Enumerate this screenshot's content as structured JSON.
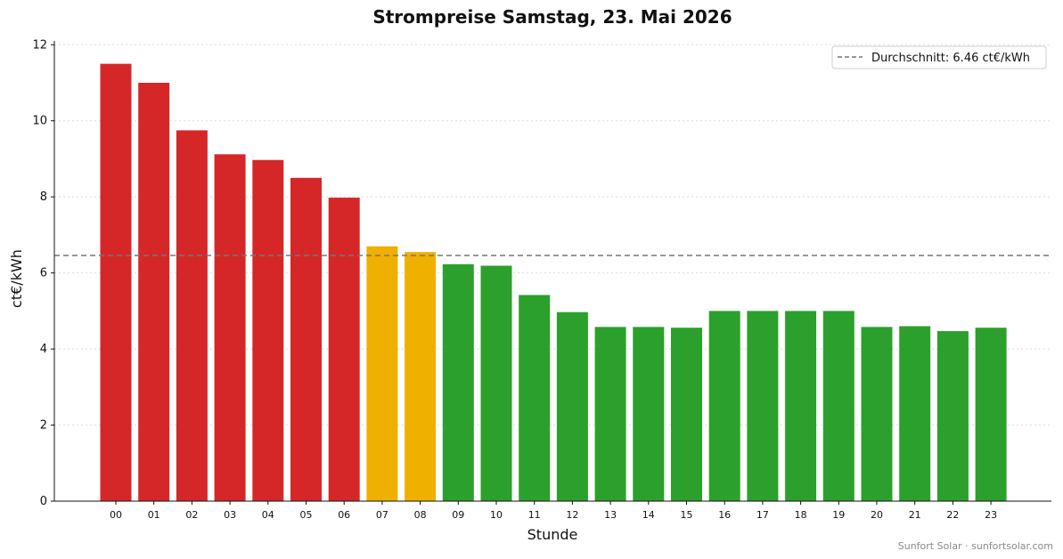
{
  "chart_data": {
    "type": "bar",
    "title": "Strompreise Samstag, 23. Mai 2026",
    "xlabel": "Stunde",
    "ylabel": "ct€/kWh",
    "ylim": [
      0,
      12.1
    ],
    "yticks": [
      0,
      2,
      4,
      6,
      8,
      10,
      12
    ],
    "grid": "horizontal dotted",
    "legend_position": "top-right",
    "categories": [
      "00",
      "01",
      "02",
      "03",
      "04",
      "05",
      "06",
      "07",
      "08",
      "09",
      "10",
      "11",
      "12",
      "13",
      "14",
      "15",
      "16",
      "17",
      "18",
      "19",
      "20",
      "21",
      "22",
      "23"
    ],
    "values": [
      11.5,
      11.0,
      9.75,
      9.12,
      8.97,
      8.5,
      7.98,
      6.7,
      6.55,
      6.23,
      6.19,
      5.42,
      4.97,
      4.58,
      4.58,
      4.56,
      5.0,
      5.0,
      5.0,
      5.0,
      4.58,
      4.6,
      4.47,
      4.56
    ],
    "bar_color_classes": [
      "high",
      "high",
      "high",
      "high",
      "high",
      "high",
      "high",
      "mid",
      "mid",
      "low",
      "low",
      "low",
      "low",
      "low",
      "low",
      "low",
      "low",
      "low",
      "low",
      "low",
      "low",
      "low",
      "low",
      "low"
    ],
    "colors": {
      "high": "#d62728",
      "mid": "#f0b000",
      "low": "#2ca02c",
      "average_line": "#777777"
    },
    "average": {
      "value": 6.46,
      "label": "Durchschnitt: 6.46 ct€/kWh"
    }
  },
  "footer": "Sunfort Solar · sunfortsolar.com"
}
